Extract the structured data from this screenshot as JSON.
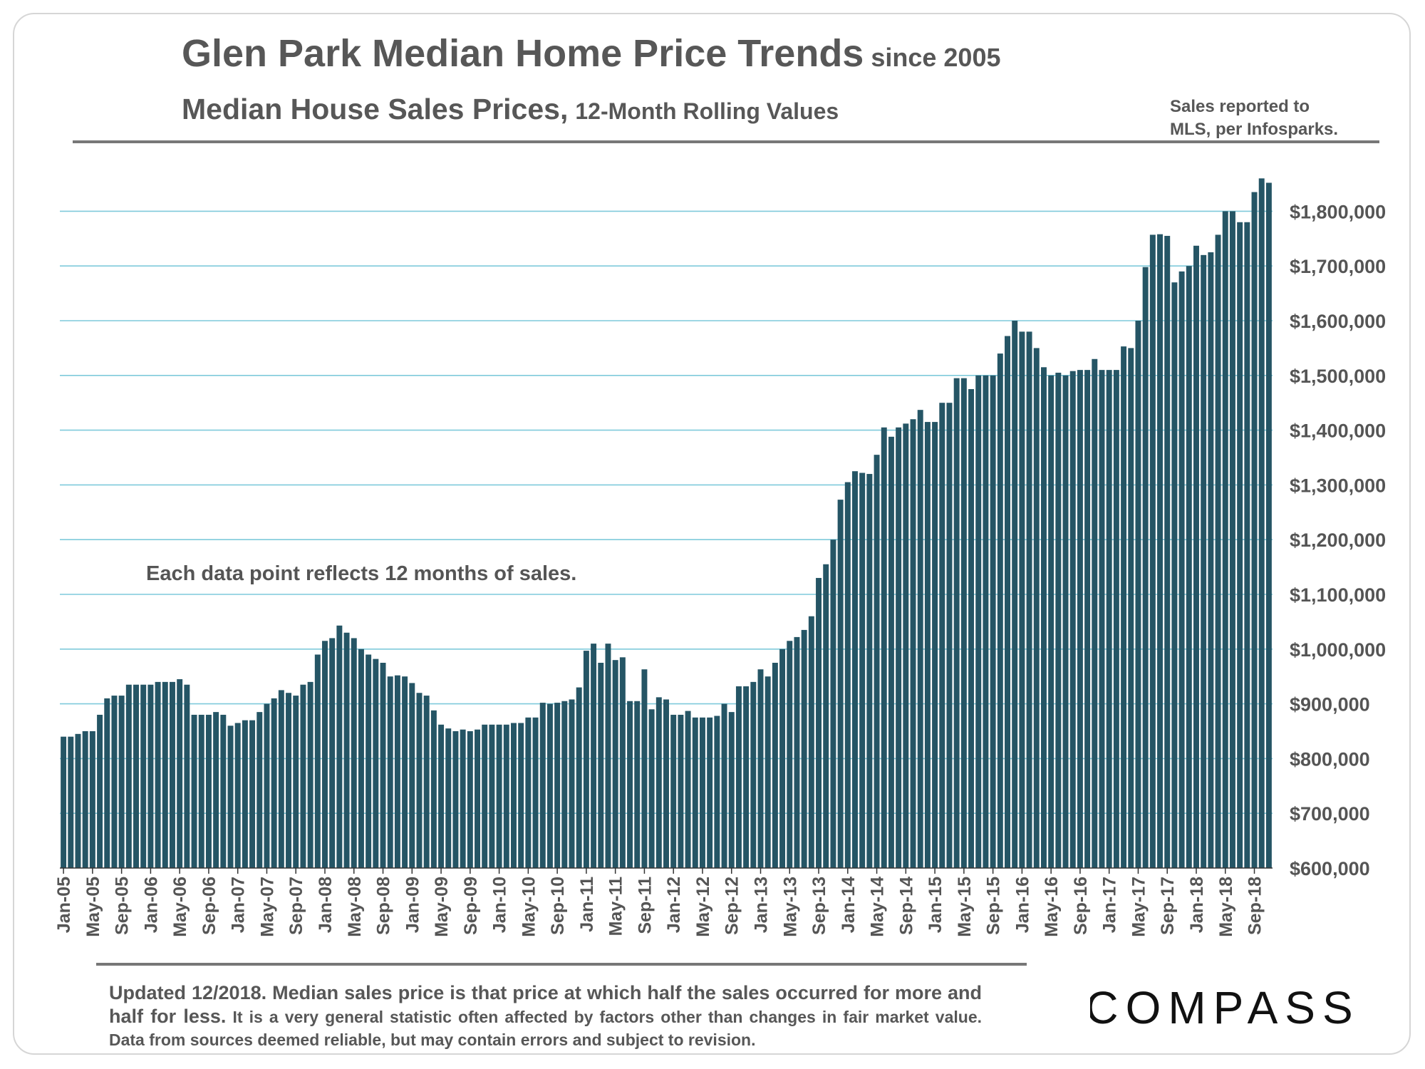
{
  "header": {
    "title": "Glen Park Median Home Price Trends",
    "title_suffix": "since 2005",
    "subtitle": "Median House Sales Prices,",
    "subtitle_suffix": "12-Month Rolling Values",
    "source_line1": "Sales reported to",
    "source_line2": "MLS, per Infosparks."
  },
  "annotation": "Each data point reflects 12 months of sales.",
  "footnote": {
    "lead": "Updated 12/2018. Median sales price is that price at which half the sales occurred for more and half for less.",
    "rest": "It is a very general statistic often affected by factors other than changes in fair market value. Data from sources deemed reliable, but may contain errors and subject to revision."
  },
  "logo": {
    "text": "COMPASS"
  },
  "chart_data": {
    "type": "bar",
    "title": "Glen Park Median Home Price Trends since 2005",
    "subtitle": "Median House Sales Prices, 12-Month Rolling Values",
    "xlabel": "",
    "ylabel": "",
    "ylim": [
      600000,
      1860000
    ],
    "grid": true,
    "bar_color": "#255565",
    "grid_color": "#7fcadb",
    "y_ticks": [
      600000,
      700000,
      800000,
      900000,
      1000000,
      1100000,
      1200000,
      1300000,
      1400000,
      1500000,
      1600000,
      1700000,
      1800000
    ],
    "y_tick_labels": [
      "$600,000",
      "$700,000",
      "$800,000",
      "$900,000",
      "$1,000,000",
      "$1,100,000",
      "$1,200,000",
      "$1,300,000",
      "$1,400,000",
      "$1,500,000",
      "$1,600,000",
      "$1,700,000",
      "$1,800,000"
    ],
    "x_tick_labels": [
      "Jan-05",
      "May-05",
      "Sep-05",
      "Jan-06",
      "May-06",
      "Sep-06",
      "Jan-07",
      "May-07",
      "Sep-07",
      "Jan-08",
      "May-08",
      "Sep-08",
      "Jan-09",
      "May-09",
      "Sep-09",
      "Jan-10",
      "May-10",
      "Sep-10",
      "Jan-11",
      "May-11",
      "Sep-11",
      "Jan-12",
      "May-12",
      "Sep-12",
      "Jan-13",
      "May-13",
      "Sep-13",
      "Jan-14",
      "May-14",
      "Sep-14",
      "Jan-15",
      "May-15",
      "Sep-15",
      "Jan-16",
      "May-16",
      "Sep-16",
      "Jan-17",
      "May-17",
      "Sep-17",
      "Jan-18",
      "May-18",
      "Sep-18"
    ],
    "x_tick_every": 4,
    "values": [
      840000,
      840000,
      845000,
      850000,
      850000,
      880000,
      910000,
      915000,
      915000,
      935000,
      935000,
      935000,
      935000,
      940000,
      940000,
      940000,
      945000,
      935000,
      880000,
      880000,
      880000,
      885000,
      880000,
      860000,
      865000,
      870000,
      870000,
      885000,
      900000,
      910000,
      925000,
      920000,
      915000,
      935000,
      940000,
      990000,
      1015000,
      1020000,
      1043000,
      1030000,
      1020000,
      1000000,
      990000,
      982000,
      975000,
      950000,
      952000,
      950000,
      938000,
      920000,
      915000,
      888000,
      862000,
      855000,
      850000,
      853000,
      850000,
      853000,
      862000,
      862000,
      862000,
      862000,
      865000,
      865000,
      875000,
      875000,
      902000,
      900000,
      902000,
      905000,
      908000,
      930000,
      997000,
      1010000,
      975000,
      1010000,
      980000,
      985000,
      905000,
      905000,
      963000,
      890000,
      912000,
      908000,
      880000,
      880000,
      887000,
      875000,
      875000,
      875000,
      878000,
      900000,
      885000,
      932000,
      932000,
      940000,
      963000,
      950000,
      975000,
      1000000,
      1015000,
      1022000,
      1035000,
      1060000,
      1130000,
      1155000,
      1200000,
      1273000,
      1305000,
      1325000,
      1322000,
      1320000,
      1355000,
      1405000,
      1388000,
      1405000,
      1412000,
      1420000,
      1437000,
      1415000,
      1415000,
      1450000,
      1450000,
      1495000,
      1495000,
      1475000,
      1500000,
      1500000,
      1500000,
      1540000,
      1572000,
      1600000,
      1580000,
      1580000,
      1550000,
      1515000,
      1500000,
      1505000,
      1500000,
      1508000,
      1510000,
      1510000,
      1530000,
      1510000,
      1510000,
      1510000,
      1553000,
      1550000,
      1600000,
      1698000,
      1757000,
      1758000,
      1755000,
      1670000,
      1690000,
      1700000,
      1737000,
      1720000,
      1725000,
      1757000,
      1800000,
      1800000,
      1780000,
      1780000,
      1835000,
      1860000,
      1852000
    ]
  }
}
